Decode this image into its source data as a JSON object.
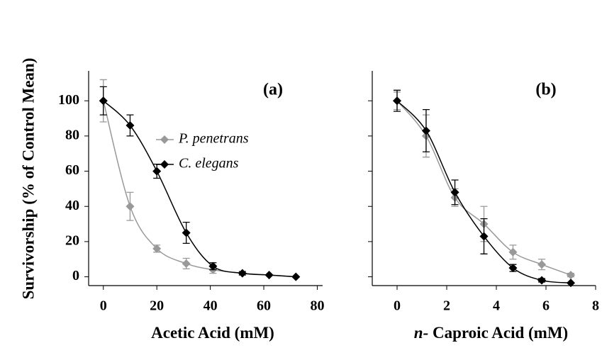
{
  "chart_data": [
    {
      "type": "line",
      "label": "(a)",
      "xlabel": "Acetic Acid (mM)",
      "ylabel": "Survivorship (% of Control Mean)",
      "xlim": [
        -5.5,
        82
      ],
      "xticks": [
        0,
        20,
        40,
        60,
        80
      ],
      "ylim": [
        -5,
        117
      ],
      "yticks": [
        0,
        20,
        40,
        60,
        80,
        100
      ],
      "ytick_labels": true,
      "legend": true,
      "series": [
        {
          "name": "P. penetrans",
          "color": "#999999",
          "x": [
            0,
            10,
            20,
            31,
            41,
            52,
            62,
            72
          ],
          "values": [
            100,
            40,
            16,
            7.5,
            4,
            2,
            1,
            0
          ],
          "errors": [
            12,
            8,
            2,
            3,
            2,
            0,
            0,
            0
          ]
        },
        {
          "name": "C. elegans",
          "color": "#000000",
          "x": [
            0,
            10,
            20,
            31,
            41,
            52,
            62,
            72
          ],
          "values": [
            100,
            86,
            60,
            25,
            6,
            2,
            1,
            0
          ],
          "errors": [
            8,
            6,
            4,
            6,
            2,
            1,
            0,
            0
          ]
        }
      ]
    },
    {
      "type": "line",
      "label": "(b)",
      "xlabel_prefix": "n-",
      "xlabel": "Caproic Acid (mM)",
      "xlim": [
        -1,
        8
      ],
      "xticks": [
        0,
        2,
        4,
        6,
        8
      ],
      "ylim": [
        -5,
        117
      ],
      "yticks": [
        0,
        20,
        40,
        60,
        80,
        100
      ],
      "ytick_labels": false,
      "legend": false,
      "series": [
        {
          "name": "P. penetrans",
          "color": "#999999",
          "x": [
            0,
            1.17,
            2.33,
            3.5,
            4.67,
            5.83,
            7
          ],
          "values": [
            100,
            80,
            45,
            30,
            14,
            7,
            1
          ],
          "errors": [
            5,
            12,
            5,
            10,
            4,
            3,
            1
          ]
        },
        {
          "name": "C. elegans",
          "color": "#000000",
          "x": [
            0,
            1.17,
            2.33,
            3.5,
            4.67,
            5.83,
            7
          ],
          "values": [
            100,
            83,
            48,
            23,
            5,
            -2,
            -3.5
          ],
          "errors": [
            6,
            12,
            7,
            10,
            2,
            1,
            0
          ]
        }
      ]
    }
  ]
}
